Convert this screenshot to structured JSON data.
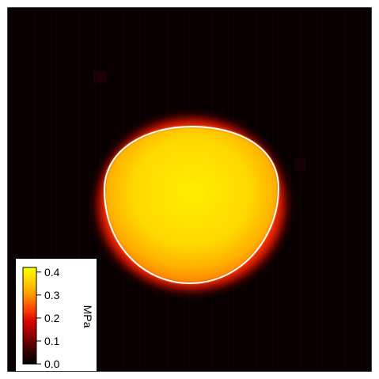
{
  "chart_data": {
    "type": "heatmap",
    "title": "",
    "xlabel": "",
    "ylabel": "",
    "colormap": "heat (black-red-orange-yellow)",
    "value_range": [
      0.0,
      0.42
    ],
    "background_value": 0.01,
    "region": {
      "shape": "ellipse",
      "inside_value_approx": 0.38,
      "edge_values_approx": [
        0.3,
        0.2,
        0.1
      ],
      "outlined": true,
      "outline_color": "#ffffff"
    },
    "colorbar": {
      "label": "MPa",
      "ticks": [
        {
          "value": 0.4,
          "label": "0.4"
        },
        {
          "value": 0.3,
          "label": "0.3"
        },
        {
          "value": 0.2,
          "label": "0.2"
        },
        {
          "value": 0.1,
          "label": "0.1"
        },
        {
          "value": 0.0,
          "label": "0.0"
        }
      ],
      "placement": "bottom-left",
      "colors": [
        "#000000",
        "#3a0000",
        "#8a0000",
        "#d40000",
        "#ff4500",
        "#ff9900",
        "#ffd200",
        "#ffff00"
      ]
    },
    "frame_color": "#000000"
  }
}
